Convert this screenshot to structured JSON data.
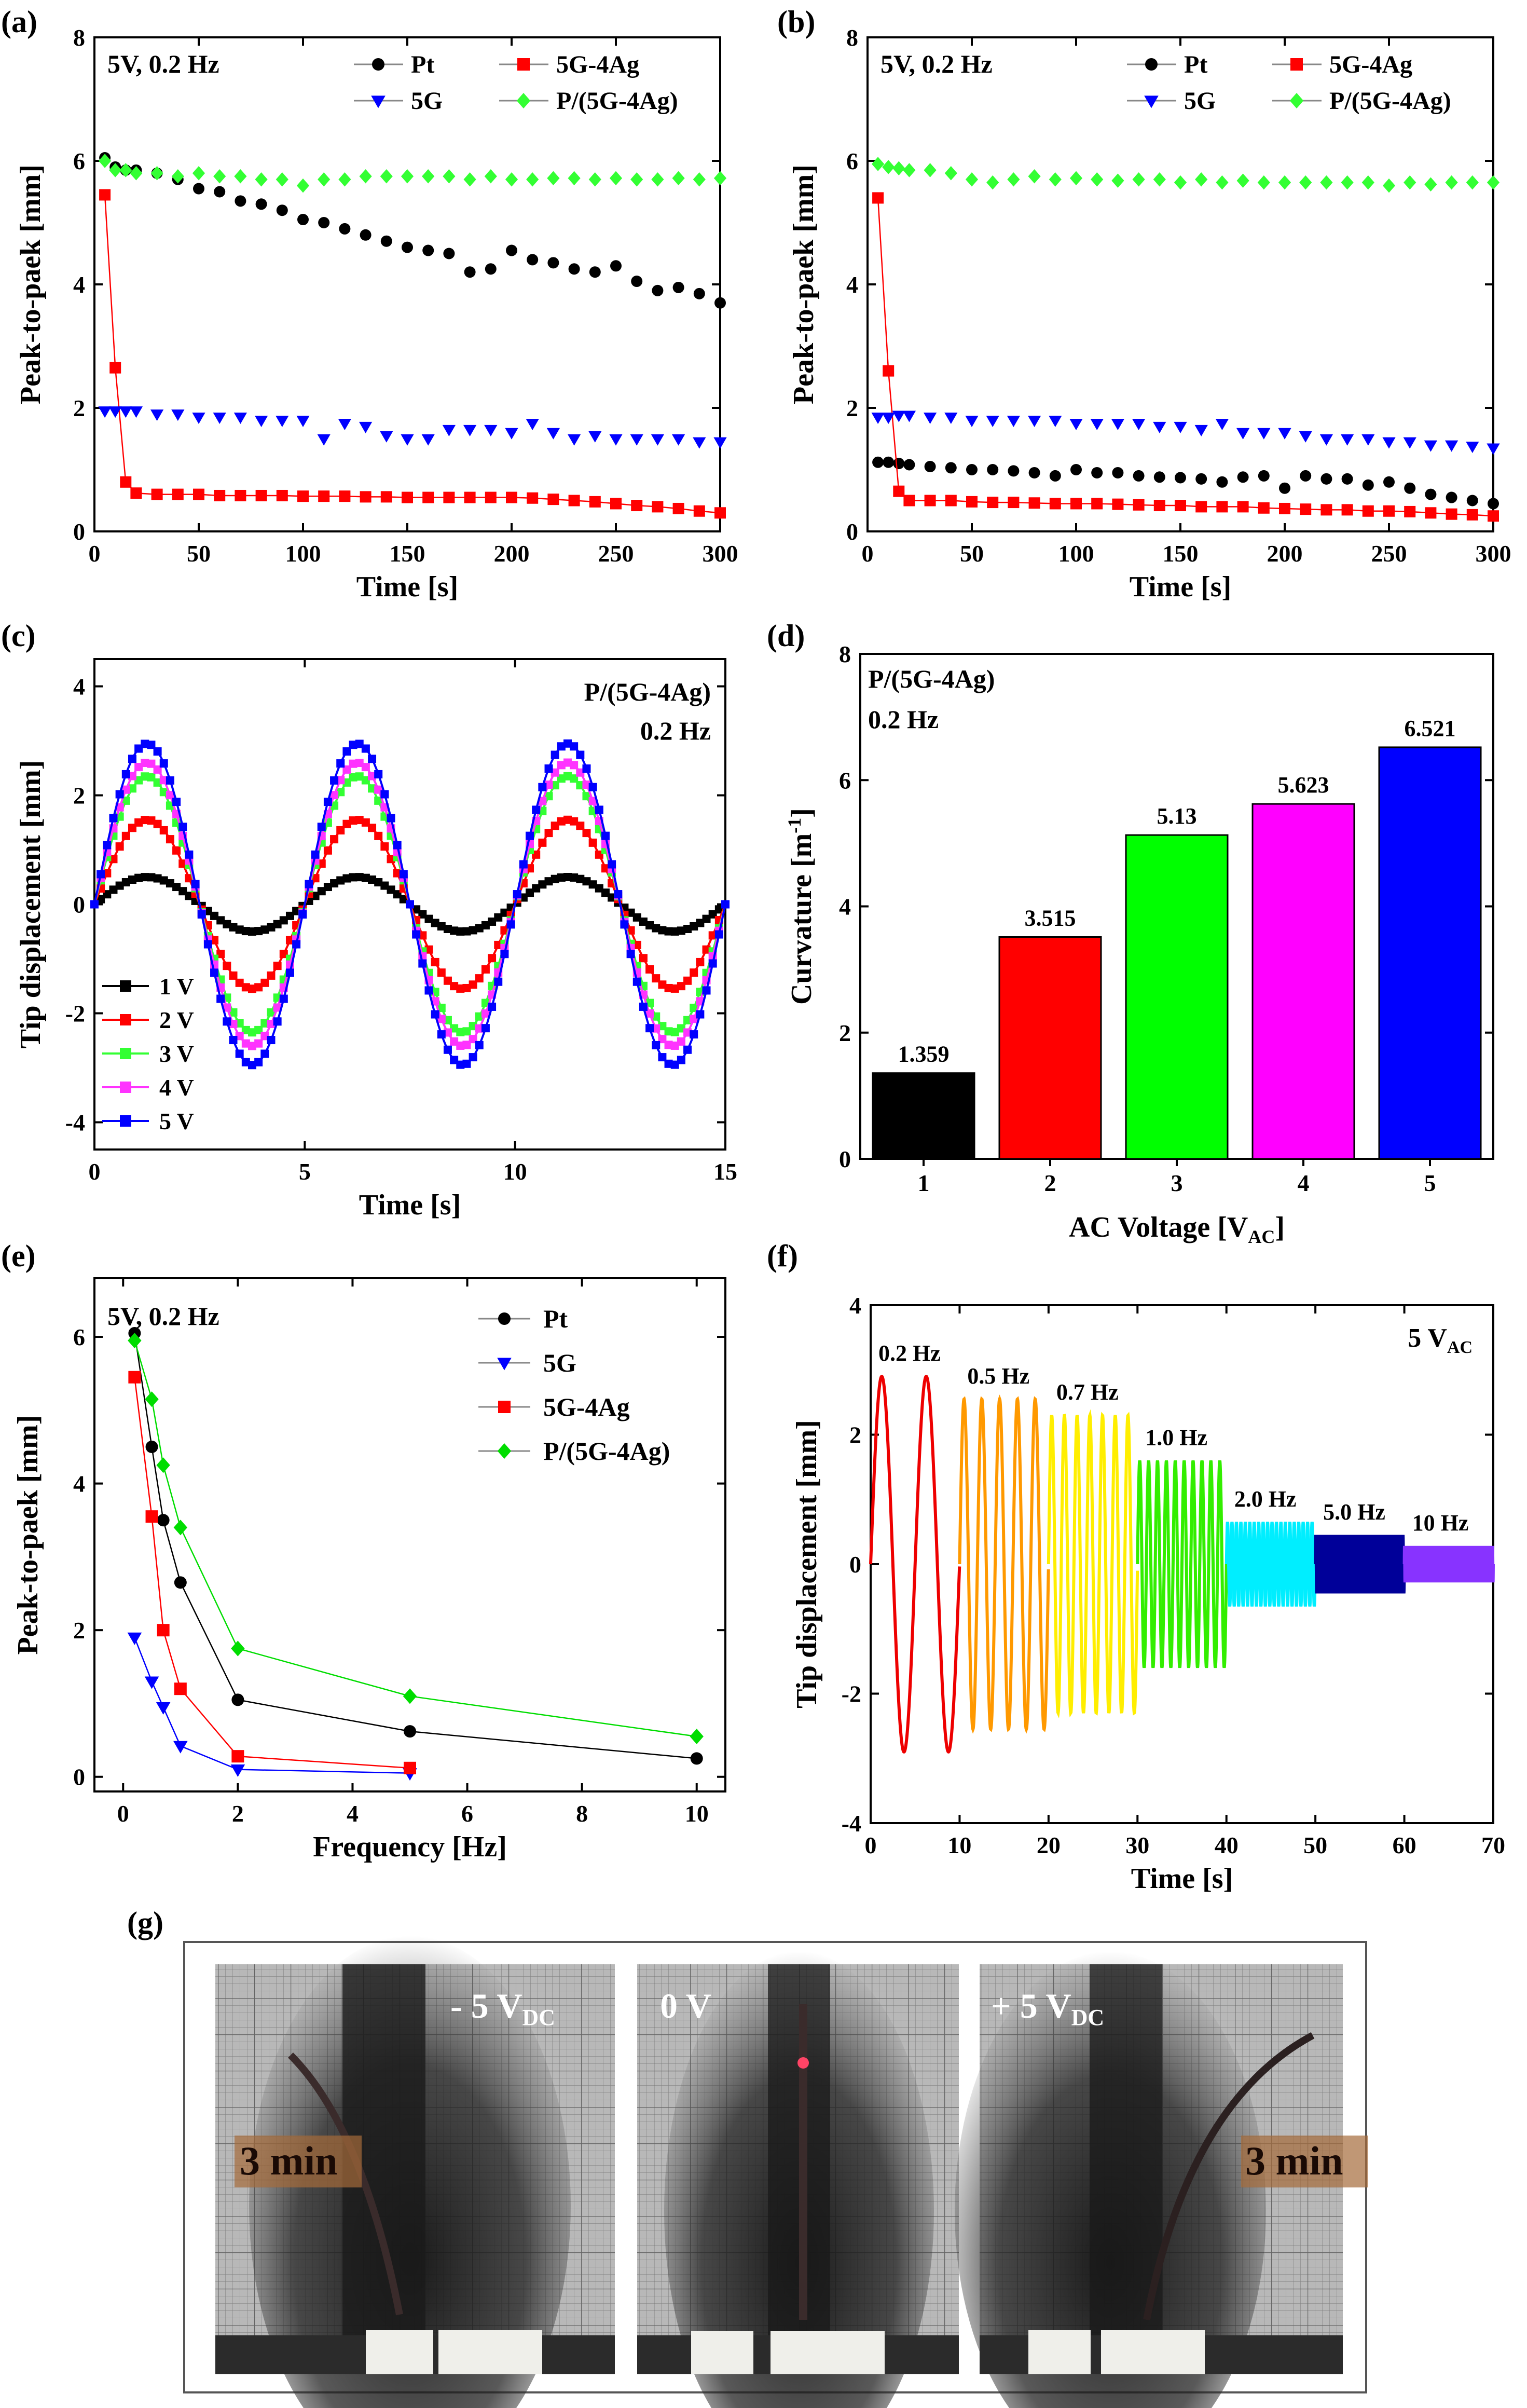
{
  "figure": {
    "panel_labels": [
      "(a)",
      "(b)",
      "(c)",
      "(d)",
      "(e)",
      "(f)",
      "(g)"
    ]
  },
  "chart_data": [
    {
      "id": "a",
      "type": "scatter",
      "title": "5V, 0.2 Hz",
      "xlabel": "Time [s]",
      "ylabel": "Peak-to-paek [mm]",
      "xlim": [
        0,
        300
      ],
      "ylim": [
        0,
        8
      ],
      "xticks": [
        0,
        50,
        100,
        150,
        200,
        250,
        300
      ],
      "yticks": [
        0,
        2,
        4,
        6,
        8
      ],
      "legend_position": "top-right",
      "legend_columns": 2,
      "series": [
        {
          "name": "Pt",
          "color": "#000000",
          "marker": "circle",
          "x": [
            5,
            10,
            15,
            20,
            30,
            40,
            50,
            60,
            70,
            80,
            90,
            100,
            110,
            120,
            130,
            140,
            150,
            160,
            170,
            180,
            190,
            200,
            210,
            220,
            230,
            240,
            250,
            260,
            270,
            280,
            290,
            300
          ],
          "y": [
            6.05,
            5.9,
            5.85,
            5.85,
            5.8,
            5.7,
            5.55,
            5.5,
            5.35,
            5.3,
            5.2,
            5.05,
            5.0,
            4.9,
            4.8,
            4.7,
            4.6,
            4.55,
            4.5,
            4.2,
            4.25,
            4.55,
            4.4,
            4.35,
            4.25,
            4.2,
            4.3,
            4.05,
            3.9,
            3.95,
            3.85,
            3.7
          ]
        },
        {
          "name": "5G-4Ag",
          "color": "#ff0000",
          "marker": "square",
          "connected": true,
          "x": [
            5,
            10,
            15,
            20,
            30,
            40,
            50,
            60,
            70,
            80,
            90,
            100,
            110,
            120,
            130,
            140,
            150,
            160,
            170,
            180,
            190,
            200,
            210,
            220,
            230,
            240,
            250,
            260,
            270,
            280,
            290,
            300
          ],
          "y": [
            5.45,
            2.65,
            0.8,
            0.62,
            0.6,
            0.6,
            0.6,
            0.58,
            0.58,
            0.58,
            0.58,
            0.57,
            0.57,
            0.57,
            0.56,
            0.56,
            0.55,
            0.55,
            0.55,
            0.55,
            0.55,
            0.55,
            0.54,
            0.52,
            0.5,
            0.48,
            0.45,
            0.42,
            0.4,
            0.37,
            0.33,
            0.3
          ]
        },
        {
          "name": "5G",
          "color": "#0000ff",
          "marker": "triangle-down",
          "x": [
            5,
            10,
            15,
            20,
            30,
            40,
            50,
            60,
            70,
            80,
            90,
            100,
            110,
            120,
            130,
            140,
            150,
            160,
            170,
            180,
            190,
            200,
            210,
            220,
            230,
            240,
            250,
            260,
            270,
            280,
            290,
            300
          ],
          "y": [
            1.95,
            1.95,
            1.95,
            1.95,
            1.9,
            1.9,
            1.85,
            1.85,
            1.85,
            1.8,
            1.8,
            1.8,
            1.5,
            1.75,
            1.7,
            1.55,
            1.5,
            1.5,
            1.65,
            1.65,
            1.65,
            1.6,
            1.75,
            1.6,
            1.5,
            1.55,
            1.5,
            1.5,
            1.5,
            1.5,
            1.45,
            1.45
          ]
        },
        {
          "name": "P/(5G-4Ag)",
          "color": "#33ff33",
          "marker": "diamond",
          "x": [
            5,
            10,
            15,
            20,
            30,
            40,
            50,
            60,
            70,
            80,
            90,
            100,
            110,
            120,
            130,
            140,
            150,
            160,
            170,
            180,
            190,
            200,
            210,
            220,
            230,
            240,
            250,
            260,
            270,
            280,
            290,
            300
          ],
          "y": [
            6.0,
            5.85,
            5.85,
            5.8,
            5.8,
            5.75,
            5.8,
            5.75,
            5.75,
            5.7,
            5.7,
            5.6,
            5.7,
            5.7,
            5.75,
            5.75,
            5.75,
            5.75,
            5.75,
            5.7,
            5.75,
            5.7,
            5.7,
            5.72,
            5.72,
            5.7,
            5.72,
            5.7,
            5.7,
            5.72,
            5.7,
            5.72
          ]
        }
      ]
    },
    {
      "id": "b",
      "type": "scatter",
      "title": "5V, 0.2 Hz",
      "xlabel": "Time [s]",
      "ylabel": "Peak-to-paek [mm]",
      "xlim": [
        0,
        300
      ],
      "ylim": [
        0,
        8
      ],
      "xticks": [
        0,
        50,
        100,
        150,
        200,
        250,
        300
      ],
      "yticks": [
        0,
        2,
        4,
        6,
        8
      ],
      "legend_position": "top-right",
      "legend_columns": 2,
      "series": [
        {
          "name": "Pt",
          "color": "#000000",
          "marker": "circle",
          "x": [
            5,
            10,
            15,
            20,
            30,
            40,
            50,
            60,
            70,
            80,
            90,
            100,
            110,
            120,
            130,
            140,
            150,
            160,
            170,
            180,
            190,
            200,
            210,
            220,
            230,
            240,
            250,
            260,
            270,
            280,
            290,
            300
          ],
          "y": [
            1.12,
            1.12,
            1.1,
            1.08,
            1.05,
            1.03,
            1.0,
            1.0,
            0.98,
            0.95,
            0.9,
            1.0,
            0.95,
            0.95,
            0.9,
            0.88,
            0.87,
            0.85,
            0.8,
            0.88,
            0.9,
            0.7,
            0.9,
            0.85,
            0.85,
            0.75,
            0.8,
            0.7,
            0.6,
            0.55,
            0.5,
            0.45
          ]
        },
        {
          "name": "5G-4Ag",
          "color": "#ff0000",
          "marker": "square",
          "connected": true,
          "x": [
            5,
            10,
            15,
            20,
            30,
            40,
            50,
            60,
            70,
            80,
            90,
            100,
            110,
            120,
            130,
            140,
            150,
            160,
            170,
            180,
            190,
            200,
            210,
            220,
            230,
            240,
            250,
            260,
            270,
            280,
            290,
            300
          ],
          "y": [
            5.4,
            2.6,
            0.65,
            0.5,
            0.5,
            0.5,
            0.48,
            0.47,
            0.47,
            0.46,
            0.45,
            0.45,
            0.45,
            0.44,
            0.43,
            0.42,
            0.42,
            0.4,
            0.4,
            0.4,
            0.38,
            0.37,
            0.36,
            0.35,
            0.35,
            0.33,
            0.33,
            0.32,
            0.3,
            0.28,
            0.27,
            0.25
          ]
        },
        {
          "name": "5G",
          "color": "#0000ff",
          "marker": "triangle-down",
          "x": [
            5,
            10,
            15,
            20,
            30,
            40,
            50,
            60,
            70,
            80,
            90,
            100,
            110,
            120,
            130,
            140,
            150,
            160,
            170,
            180,
            190,
            200,
            210,
            220,
            230,
            240,
            250,
            260,
            270,
            280,
            290,
            300
          ],
          "y": [
            1.85,
            1.85,
            1.88,
            1.88,
            1.85,
            1.85,
            1.8,
            1.8,
            1.8,
            1.8,
            1.8,
            1.75,
            1.75,
            1.75,
            1.75,
            1.7,
            1.7,
            1.65,
            1.75,
            1.6,
            1.6,
            1.6,
            1.55,
            1.5,
            1.5,
            1.5,
            1.45,
            1.45,
            1.4,
            1.4,
            1.38,
            1.35
          ]
        },
        {
          "name": "P/(5G-4Ag)",
          "color": "#33ff33",
          "marker": "diamond",
          "x": [
            5,
            10,
            15,
            20,
            30,
            40,
            50,
            60,
            70,
            80,
            90,
            100,
            110,
            120,
            130,
            140,
            150,
            160,
            170,
            180,
            190,
            200,
            210,
            220,
            230,
            240,
            250,
            260,
            270,
            280,
            290,
            300
          ],
          "y": [
            5.95,
            5.9,
            5.88,
            5.85,
            5.85,
            5.8,
            5.7,
            5.65,
            5.7,
            5.75,
            5.7,
            5.72,
            5.7,
            5.68,
            5.7,
            5.7,
            5.65,
            5.7,
            5.65,
            5.68,
            5.65,
            5.65,
            5.65,
            5.65,
            5.65,
            5.65,
            5.6,
            5.65,
            5.62,
            5.65,
            5.65,
            5.65
          ]
        }
      ]
    },
    {
      "id": "c",
      "type": "line",
      "title": "P/(5G-4Ag)",
      "subtitle": "0.2 Hz",
      "xlabel": "Time [s]",
      "ylabel": "Tip displacement [mm]",
      "xlim": [
        0,
        15
      ],
      "ylim": [
        -4.5,
        4.5
      ],
      "xticks": [
        0,
        5,
        10,
        15
      ],
      "yticks": [
        -4,
        -2,
        0,
        2,
        4
      ],
      "legend_position": "bottom-left",
      "waveform": "sine",
      "frequency_hz": 0.2,
      "series": [
        {
          "name": "1 V",
          "color": "#000000",
          "marker": "square",
          "amplitude": 0.5
        },
        {
          "name": "2 V",
          "color": "#ff0000",
          "marker": "square",
          "amplitude": 1.55
        },
        {
          "name": "3 V",
          "color": "#33ff33",
          "marker": "square",
          "amplitude": 2.35
        },
        {
          "name": "4 V",
          "color": "#ff33ff",
          "marker": "square",
          "amplitude": 2.6
        },
        {
          "name": "5 V",
          "color": "#0000ff",
          "marker": "square",
          "amplitude": 2.95
        }
      ]
    },
    {
      "id": "d",
      "type": "bar",
      "title": "P/(5G-4Ag)",
      "subtitle": "0.2 Hz",
      "xlabel": "AC Voltage [V",
      "xlabel_sub": "AC",
      "xlabel_end": "]",
      "ylabel": "Curvature [m",
      "ylabel_sup": "-1",
      "ylabel_end": "]",
      "ylim": [
        0,
        8
      ],
      "yticks": [
        0,
        2,
        4,
        6,
        8
      ],
      "categories": [
        "1",
        "2",
        "3",
        "4",
        "5"
      ],
      "values": [
        1.359,
        3.515,
        5.13,
        5.623,
        6.521
      ],
      "labels": [
        "1.359",
        "3.515",
        "5.13",
        "5.623",
        "6.521"
      ],
      "colors": [
        "#000000",
        "#ff0000",
        "#00ff00",
        "#ff00ff",
        "#0000ff"
      ]
    },
    {
      "id": "e",
      "type": "line",
      "title": "5V, 0.2 Hz",
      "xlabel": "Frequency [Hz]",
      "ylabel": "Peak-to-paek [mm]",
      "xlim": [
        -0.5,
        10.5
      ],
      "ylim": [
        -0.2,
        6.8
      ],
      "xticks": [
        0,
        2,
        4,
        6,
        8,
        10
      ],
      "yticks": [
        0,
        2,
        4,
        6
      ],
      "legend_position": "top-right",
      "series": [
        {
          "name": "Pt",
          "color": "#000000",
          "marker": "circle",
          "x": [
            0.2,
            0.5,
            0.7,
            1,
            2,
            5,
            10
          ],
          "y": [
            6.05,
            4.5,
            3.5,
            2.65,
            1.05,
            0.62,
            0.25
          ]
        },
        {
          "name": "5G",
          "color": "#0000ff",
          "marker": "triangle-down",
          "x": [
            0.2,
            0.5,
            0.7,
            1,
            2,
            5
          ],
          "y": [
            1.9,
            1.3,
            0.95,
            0.42,
            0.1,
            0.05
          ]
        },
        {
          "name": "5G-4Ag",
          "color": "#ff0000",
          "marker": "square",
          "x": [
            0.2,
            0.5,
            0.7,
            1,
            2,
            5
          ],
          "y": [
            5.45,
            3.55,
            2.0,
            1.2,
            0.28,
            0.12
          ]
        },
        {
          "name": "P/(5G-4Ag)",
          "color": "#00dd00",
          "marker": "diamond",
          "x": [
            0.2,
            0.5,
            0.7,
            1,
            2,
            5,
            10
          ],
          "y": [
            5.95,
            5.15,
            4.25,
            3.4,
            1.75,
            1.1,
            0.55
          ]
        }
      ]
    },
    {
      "id": "f",
      "type": "line",
      "title": "5 V",
      "title_sub": "AC",
      "xlabel": "Time [s]",
      "ylabel": "Tip displacement [mm]",
      "xlim": [
        0,
        70
      ],
      "ylim": [
        -4,
        4
      ],
      "xticks": [
        0,
        10,
        20,
        30,
        40,
        50,
        60,
        70
      ],
      "yticks": [
        -4,
        -2,
        0,
        2,
        4
      ],
      "segments": [
        {
          "label": "0.2 Hz",
          "freq": 0.2,
          "t0": 0,
          "t1": 10,
          "amplitude": 2.9,
          "color": "#ee0000"
        },
        {
          "label": "0.5 Hz",
          "freq": 0.5,
          "t0": 10,
          "t1": 20,
          "amplitude": 2.55,
          "color": "#ff9900"
        },
        {
          "label": "0.7 Hz",
          "freq": 0.7,
          "t0": 20,
          "t1": 30,
          "amplitude": 2.3,
          "color": "#ffee00"
        },
        {
          "label": "1.0 Hz",
          "freq": 1.0,
          "t0": 30,
          "t1": 40,
          "amplitude": 1.6,
          "color": "#33ee00"
        },
        {
          "label": "2.0 Hz",
          "freq": 2.0,
          "t0": 40,
          "t1": 50,
          "amplitude": 0.65,
          "color": "#00eeff"
        },
        {
          "label": "5.0 Hz",
          "freq": 5.0,
          "t0": 50,
          "t1": 60,
          "amplitude": 0.45,
          "color": "#000099"
        },
        {
          "label": "10 Hz",
          "freq": 10.0,
          "t0": 60,
          "t1": 70,
          "amplitude": 0.28,
          "color": "#8833ff"
        }
      ]
    }
  ],
  "photos": {
    "left": {
      "voltage": "- 5 V",
      "voltage_sub": "DC",
      "time": "3 min"
    },
    "center": {
      "voltage": "0 V"
    },
    "right": {
      "voltage": "+ 5 V",
      "voltage_sub": "DC",
      "time": "3 min"
    }
  }
}
